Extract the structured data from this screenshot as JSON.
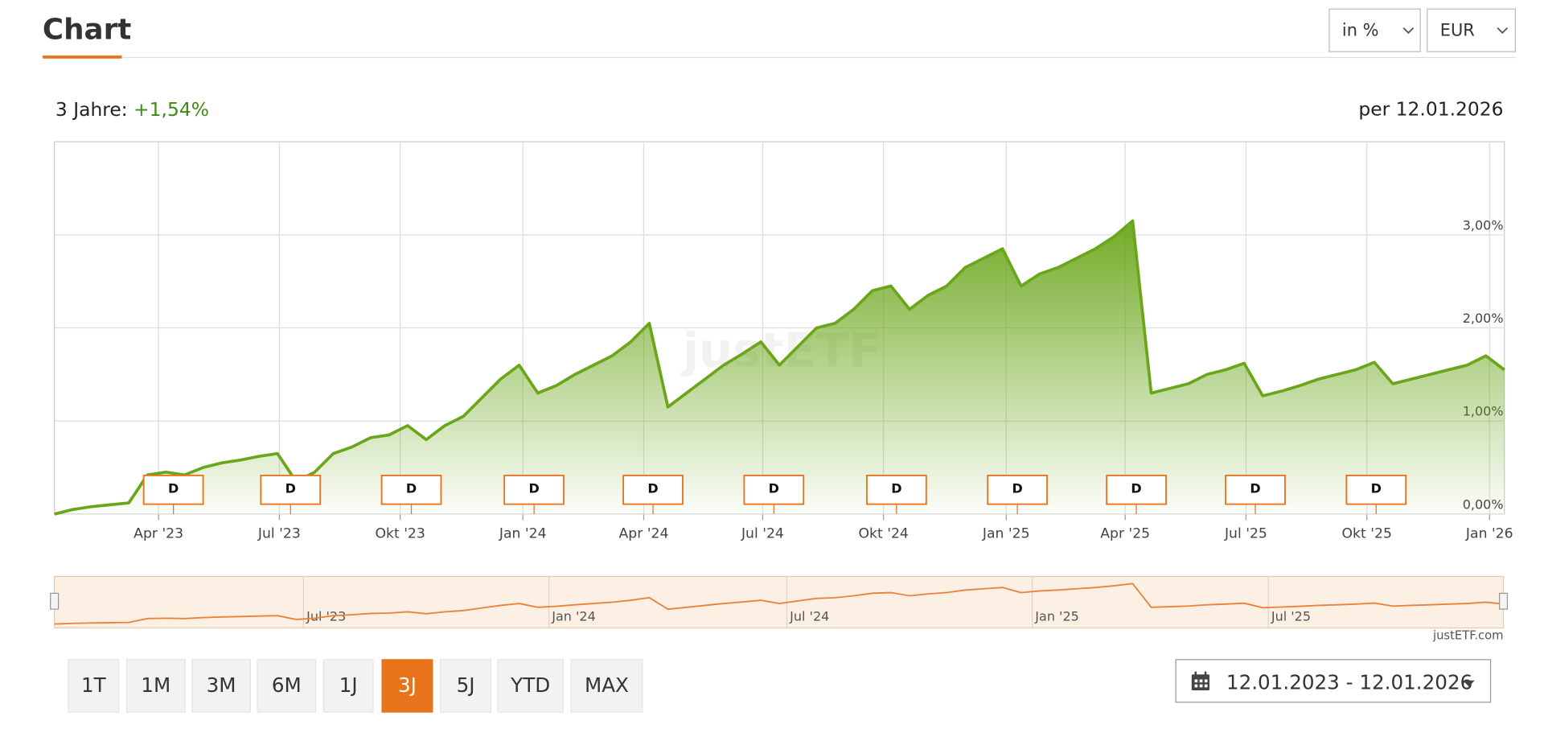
{
  "header": {
    "title": "Chart",
    "unit_select": "in %",
    "currency_select": "EUR"
  },
  "summary": {
    "label": "3 Jahre:",
    "change": "+1,54%",
    "as_of": "per 12.01.2026"
  },
  "chart_data": {
    "type": "area",
    "color": "#6aa61a",
    "values": [
      0.0,
      0.05,
      0.08,
      0.1,
      0.12,
      0.42,
      0.45,
      0.42,
      0.5,
      0.55,
      0.58,
      0.62,
      0.65,
      0.35,
      0.45,
      0.65,
      0.72,
      0.82,
      0.85,
      0.95,
      0.8,
      0.95,
      1.05,
      1.25,
      1.45,
      1.6,
      1.3,
      1.38,
      1.5,
      1.6,
      1.7,
      1.85,
      2.05,
      1.15,
      1.3,
      1.45,
      1.6,
      1.72,
      1.85,
      1.6,
      1.8,
      2.0,
      2.05,
      2.2,
      2.4,
      2.45,
      2.2,
      2.35,
      2.45,
      2.65,
      2.75,
      2.85,
      2.45,
      2.58,
      2.65,
      2.75,
      2.85,
      2.98,
      3.15,
      1.3,
      1.35,
      1.4,
      1.5,
      1.55,
      1.62,
      1.27,
      1.32,
      1.38,
      1.45,
      1.5,
      1.55,
      1.63,
      1.4,
      1.45,
      1.5,
      1.55,
      1.6,
      1.7,
      1.55
    ],
    "xlim": [
      0,
      78
    ],
    "xticks": [
      {
        "value": 5.6,
        "label": "Apr '23"
      },
      {
        "value": 12.1,
        "label": "Jul '23"
      },
      {
        "value": 18.6,
        "label": "Okt '23"
      },
      {
        "value": 25.2,
        "label": "Jan '24"
      },
      {
        "value": 31.7,
        "label": "Apr '24"
      },
      {
        "value": 38.1,
        "label": "Jul '24"
      },
      {
        "value": 44.6,
        "label": "Okt '24"
      },
      {
        "value": 51.2,
        "label": "Jan '25"
      },
      {
        "value": 57.6,
        "label": "Apr '25"
      },
      {
        "value": 64.1,
        "label": "Jul '25"
      },
      {
        "value": 70.6,
        "label": "Okt '25"
      },
      {
        "value": 77.2,
        "label": "Jan '26"
      }
    ],
    "ylim": [
      0,
      4
    ],
    "yticks": [
      {
        "value": 0,
        "label": "0,00%"
      },
      {
        "value": 1,
        "label": "1,00%"
      },
      {
        "value": 2,
        "label": "2,00%"
      },
      {
        "value": 3,
        "label": "3,00%"
      }
    ],
    "grid": true,
    "watermark": "justETF",
    "dividend_markers": {
      "label": "D",
      "x": [
        6.4,
        12.7,
        19.2,
        25.8,
        32.2,
        38.7,
        45.3,
        51.8,
        58.2,
        64.6,
        71.1
      ]
    },
    "navigator": {
      "color": "#e8843a",
      "ylim": [
        0,
        3.4
      ],
      "xticks": [
        {
          "value": 13.4,
          "label": "Jul '23"
        },
        {
          "value": 26.6,
          "label": "Jan '24"
        },
        {
          "value": 39.4,
          "label": "Jul '24"
        },
        {
          "value": 52.6,
          "label": "Jan '25"
        },
        {
          "value": 65.3,
          "label": "Jul '25"
        }
      ]
    }
  },
  "credit": "justETF.com",
  "range_buttons": [
    "1T",
    "1M",
    "3M",
    "6M",
    "1J",
    "3J",
    "5J",
    "YTD",
    "MAX"
  ],
  "active_range": "3J",
  "date_range": "12.01.2023 - 12.01.2026"
}
